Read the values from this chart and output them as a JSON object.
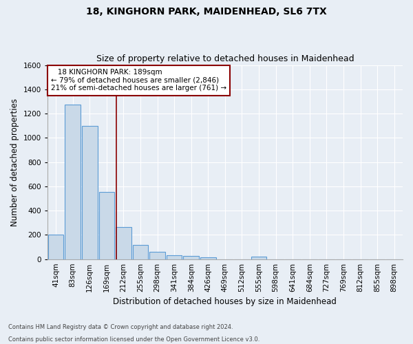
{
  "title1": "18, KINGHORN PARK, MAIDENHEAD, SL6 7TX",
  "title2": "Size of property relative to detached houses in Maidenhead",
  "xlabel": "Distribution of detached houses by size in Maidenhead",
  "ylabel": "Number of detached properties",
  "footer1": "Contains HM Land Registry data © Crown copyright and database right 2024.",
  "footer2": "Contains public sector information licensed under the Open Government Licence v3.0.",
  "bar_labels": [
    "41sqm",
    "83sqm",
    "126sqm",
    "169sqm",
    "212sqm",
    "255sqm",
    "298sqm",
    "341sqm",
    "384sqm",
    "426sqm",
    "469sqm",
    "512sqm",
    "555sqm",
    "598sqm",
    "641sqm",
    "684sqm",
    "727sqm",
    "769sqm",
    "812sqm",
    "855sqm",
    "898sqm"
  ],
  "bar_heights": [
    200,
    1275,
    1100,
    555,
    265,
    120,
    60,
    35,
    25,
    15,
    0,
    0,
    20,
    0,
    0,
    0,
    0,
    0,
    0,
    0,
    0
  ],
  "bar_color": "#c9d9e8",
  "bar_edge_color": "#5b9bd5",
  "bar_edge_width": 0.8,
  "red_line_x": 3.58,
  "red_line_color": "#8b0000",
  "annotation_line1": "   18 KINGHORN PARK: 189sqm",
  "annotation_line2": "← 79% of detached houses are smaller (2,846)",
  "annotation_line3": "21% of semi-detached houses are larger (761) →",
  "annotation_box_color": "#ffffff",
  "annotation_box_edge": "#8b0000",
  "ylim": [
    0,
    1600
  ],
  "yticks": [
    0,
    200,
    400,
    600,
    800,
    1000,
    1200,
    1400,
    1600
  ],
  "bg_color": "#e8eef5",
  "plot_bg_color": "#e8eef5",
  "grid_color": "#ffffff",
  "title1_fontsize": 10,
  "title2_fontsize": 9,
  "xlabel_fontsize": 8.5,
  "ylabel_fontsize": 8.5,
  "tick_fontsize": 7.5,
  "annotation_fontsize": 7.5,
  "footer_fontsize": 6.0
}
